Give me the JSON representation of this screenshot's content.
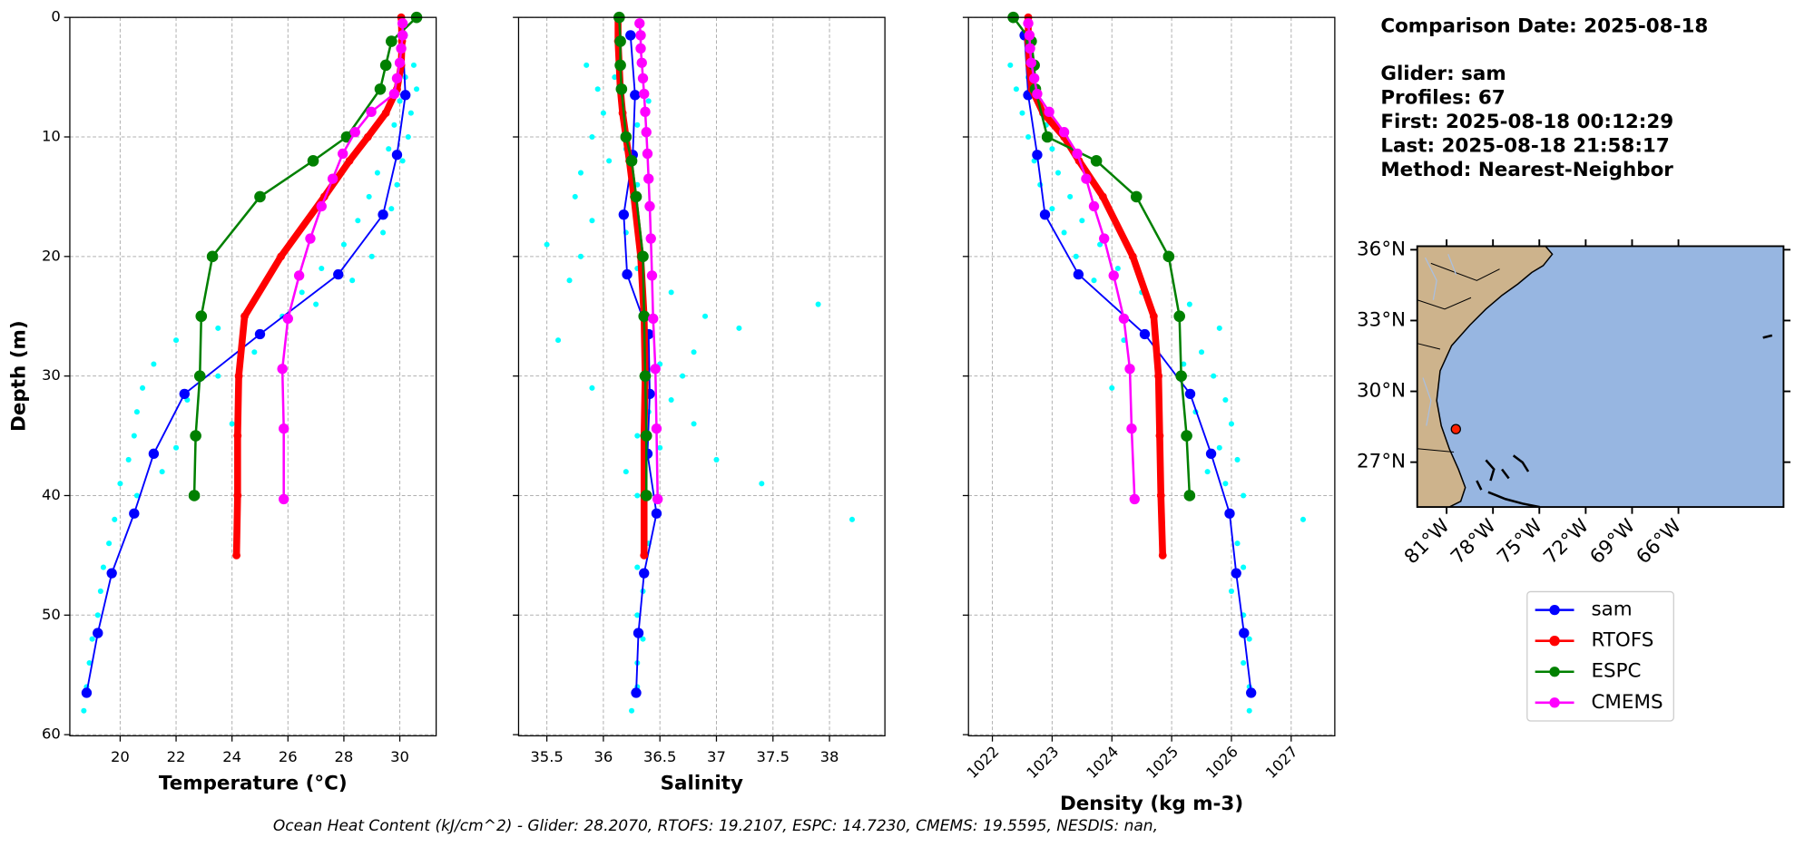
{
  "chart_data": [
    {
      "type": "line",
      "xlabel": "Temperature (°C)",
      "ylabel": "Depth (m)",
      "xlim": [
        18.2,
        31.3
      ],
      "xticks": [
        20,
        22,
        24,
        26,
        28,
        30
      ],
      "ylim": [
        0,
        60
      ],
      "yticks": [
        0,
        10,
        20,
        30,
        40,
        50,
        60
      ],
      "show_ytick_labels": true,
      "xtick_rotation": 0,
      "grid": true,
      "scatter": {
        "color": "#00ffff",
        "depth": [
          4,
          5,
          6,
          7,
          8,
          9,
          10,
          11,
          12,
          13,
          14,
          15,
          16,
          17,
          18,
          19,
          20,
          21,
          22,
          23,
          24,
          25,
          26,
          27,
          28,
          29,
          30,
          31,
          32,
          33,
          34,
          35,
          36,
          37,
          38,
          39,
          40,
          42,
          44,
          46,
          48,
          50,
          52,
          54,
          56,
          58
        ],
        "values": [
          30.5,
          30.2,
          30.6,
          30.0,
          30.4,
          29.8,
          30.3,
          29.6,
          30.1,
          29.2,
          29.9,
          28.9,
          29.7,
          28.5,
          29.4,
          28.0,
          29.0,
          27.2,
          28.3,
          26.5,
          27.0,
          25.8,
          23.5,
          22.0,
          24.8,
          21.2,
          23.5,
          20.8,
          22.4,
          20.6,
          24.0,
          20.5,
          22.0,
          20.3,
          21.5,
          20.0,
          20.6,
          19.8,
          19.6,
          19.4,
          19.3,
          19.2,
          19.0,
          18.9,
          18.8,
          18.7
        ]
      },
      "series": [
        {
          "name": "sam",
          "color": "#0000ff",
          "depth": [
            1.5,
            6.5,
            11.5,
            16.5,
            21.5,
            26.5,
            31.5,
            36.5,
            41.5,
            46.5,
            51.5,
            56.5
          ],
          "values": [
            30.1,
            30.2,
            29.9,
            29.4,
            27.8,
            25.0,
            22.3,
            21.2,
            20.5,
            19.7,
            19.2,
            18.8
          ]
        },
        {
          "name": "RTOFS",
          "color": "#ff0000",
          "depth": [
            0,
            2,
            4,
            6,
            8,
            10,
            12,
            15,
            20,
            25,
            30,
            35,
            40,
            45
          ],
          "values": [
            30.05,
            30.08,
            30.05,
            29.9,
            29.5,
            28.86,
            28.2,
            27.3,
            25.75,
            24.45,
            24.24,
            24.2,
            24.2,
            24.16
          ]
        },
        {
          "name": "ESPC",
          "color": "#008000",
          "depth": [
            0,
            2,
            4,
            6,
            10,
            12,
            15,
            20,
            25,
            30,
            35,
            40
          ],
          "values": [
            30.6,
            29.7,
            29.5,
            29.3,
            28.1,
            26.9,
            25.0,
            23.3,
            22.9,
            22.85,
            22.7,
            22.65
          ]
        },
        {
          "name": "CMEMS",
          "color": "#ff00ff",
          "depth": [
            0.5,
            1.5,
            2.6,
            3.8,
            5.1,
            6.4,
            7.9,
            9.6,
            11.4,
            13.5,
            15.8,
            18.5,
            21.6,
            25.2,
            29.4,
            34.4,
            40.3
          ],
          "values": [
            30.1,
            30.1,
            30.05,
            30.0,
            29.9,
            29.8,
            28.98,
            28.4,
            27.96,
            27.6,
            27.2,
            26.8,
            26.4,
            26.0,
            25.8,
            25.85,
            25.85
          ]
        }
      ]
    },
    {
      "type": "line",
      "xlabel": "Salinity",
      "xlim": [
        35.25,
        38.49
      ],
      "xticks": [
        35.5,
        36.0,
        36.5,
        37.0,
        37.5,
        38.0
      ],
      "ylim": [
        0,
        60
      ],
      "yticks": [
        0,
        10,
        20,
        30,
        40,
        50,
        60
      ],
      "show_ytick_labels": false,
      "xtick_rotation": 0,
      "grid": true,
      "scatter": {
        "color": "#00ffff",
        "depth": [
          4,
          5,
          6,
          7,
          8,
          9,
          10,
          11,
          12,
          13,
          14,
          15,
          16,
          17,
          18,
          19,
          20,
          21,
          22,
          23,
          24,
          25,
          26,
          27,
          28,
          29,
          30,
          31,
          32,
          33,
          34,
          35,
          36,
          37,
          38,
          39,
          40,
          42,
          44,
          46,
          48,
          50,
          52,
          54,
          56,
          58
        ],
        "values": [
          35.85,
          36.1,
          35.95,
          36.4,
          36.0,
          36.3,
          35.9,
          36.2,
          36.05,
          35.8,
          36.3,
          35.75,
          36.4,
          35.9,
          36.2,
          35.5,
          35.8,
          36.3,
          35.7,
          36.6,
          37.9,
          36.9,
          37.2,
          35.6,
          36.8,
          36.5,
          36.7,
          35.9,
          36.6,
          36.4,
          36.8,
          36.3,
          36.5,
          37.0,
          36.2,
          37.4,
          36.3,
          38.2,
          36.4,
          36.3,
          36.35,
          36.3,
          36.35,
          36.3,
          36.3,
          36.25
        ]
      },
      "series": [
        {
          "name": "sam",
          "color": "#0000ff",
          "depth": [
            1.5,
            6.5,
            11.5,
            16.5,
            21.5,
            26.5,
            31.5,
            36.5,
            41.5,
            46.5,
            51.5,
            56.5
          ],
          "values": [
            36.24,
            36.28,
            36.26,
            36.18,
            36.21,
            36.4,
            36.41,
            36.39,
            36.47,
            36.36,
            36.31,
            36.29
          ]
        },
        {
          "name": "RTOFS",
          "color": "#ff0000",
          "depth": [
            0,
            2,
            4,
            6,
            8,
            10,
            12,
            15,
            20,
            25,
            30,
            35,
            40,
            45
          ],
          "values": [
            36.13,
            36.13,
            36.14,
            36.15,
            36.17,
            36.2,
            36.23,
            36.27,
            36.33,
            36.36,
            36.37,
            36.36,
            36.36,
            36.36
          ]
        },
        {
          "name": "ESPC",
          "color": "#008000",
          "depth": [
            0,
            2,
            4,
            6,
            10,
            12,
            15,
            20,
            25,
            30,
            35,
            40
          ],
          "values": [
            36.14,
            36.15,
            36.15,
            36.16,
            36.2,
            36.25,
            36.29,
            36.35,
            36.36,
            36.37,
            36.38,
            36.38
          ]
        },
        {
          "name": "CMEMS",
          "color": "#ff00ff",
          "depth": [
            0.5,
            1.5,
            2.6,
            3.8,
            5.1,
            6.4,
            7.9,
            9.6,
            11.4,
            13.5,
            15.8,
            18.5,
            21.6,
            25.2,
            29.4,
            34.4,
            40.3
          ],
          "values": [
            36.32,
            36.33,
            36.33,
            36.34,
            36.35,
            36.36,
            36.37,
            36.38,
            36.39,
            36.4,
            36.41,
            36.42,
            36.43,
            36.44,
            36.46,
            36.47,
            36.48
          ]
        }
      ]
    },
    {
      "type": "line",
      "xlabel": "Density (kg m-3)",
      "xlim": [
        1021.6,
        1027.73
      ],
      "xticks": [
        1022,
        1023,
        1024,
        1025,
        1026,
        1027
      ],
      "ylim": [
        0,
        60
      ],
      "yticks": [
        0,
        10,
        20,
        30,
        40,
        50,
        60
      ],
      "show_ytick_labels": false,
      "xtick_rotation": 45,
      "grid": true,
      "scatter": {
        "color": "#00ffff",
        "depth": [
          4,
          5,
          6,
          7,
          8,
          9,
          10,
          11,
          12,
          13,
          14,
          15,
          16,
          17,
          18,
          19,
          20,
          21,
          22,
          23,
          24,
          25,
          26,
          27,
          28,
          29,
          30,
          31,
          32,
          33,
          34,
          35,
          36,
          37,
          38,
          39,
          40,
          42,
          44,
          46,
          48,
          50,
          52,
          54,
          56,
          58
        ],
        "values": [
          1022.3,
          1022.6,
          1022.4,
          1022.8,
          1022.5,
          1022.9,
          1022.6,
          1023.0,
          1022.7,
          1023.1,
          1022.8,
          1023.3,
          1023.0,
          1023.5,
          1023.2,
          1023.8,
          1023.4,
          1024.1,
          1023.7,
          1024.5,
          1025.3,
          1024.7,
          1025.8,
          1024.2,
          1025.5,
          1025.2,
          1025.7,
          1024.0,
          1025.9,
          1025.4,
          1026.0,
          1025.3,
          1025.8,
          1026.1,
          1025.6,
          1025.9,
          1026.2,
          1027.2,
          1026.1,
          1026.2,
          1026.0,
          1026.2,
          1026.3,
          1026.2,
          1026.3,
          1026.3
        ]
      },
      "series": [
        {
          "name": "sam",
          "color": "#0000ff",
          "depth": [
            1.5,
            6.5,
            11.5,
            16.5,
            21.5,
            26.5,
            31.5,
            36.5,
            41.5,
            46.5,
            51.5,
            56.5
          ],
          "values": [
            1022.54,
            1022.6,
            1022.75,
            1022.88,
            1023.44,
            1024.55,
            1025.31,
            1025.66,
            1025.97,
            1026.08,
            1026.21,
            1026.33
          ]
        },
        {
          "name": "RTOFS",
          "color": "#ff0000",
          "depth": [
            0,
            2,
            4,
            6,
            8,
            10,
            12,
            15,
            20,
            25,
            30,
            35,
            40,
            45
          ],
          "values": [
            1022.6,
            1022.6,
            1022.62,
            1022.66,
            1022.85,
            1023.2,
            1023.45,
            1023.85,
            1024.35,
            1024.7,
            1024.78,
            1024.8,
            1024.82,
            1024.85
          ]
        },
        {
          "name": "ESPC",
          "color": "#008000",
          "depth": [
            0,
            2,
            4,
            6,
            10,
            12,
            15,
            20,
            25,
            30,
            35,
            40
          ],
          "values": [
            1022.35,
            1022.65,
            1022.7,
            1022.72,
            1022.92,
            1023.74,
            1024.41,
            1024.95,
            1025.13,
            1025.16,
            1025.25,
            1025.3
          ]
        },
        {
          "name": "CMEMS",
          "color": "#ff00ff",
          "depth": [
            0.5,
            1.5,
            2.6,
            3.8,
            5.1,
            6.4,
            7.9,
            9.6,
            11.4,
            13.5,
            15.8,
            18.5,
            21.6,
            25.2,
            29.4,
            34.4,
            40.3
          ],
          "values": [
            1022.6,
            1022.62,
            1022.63,
            1022.65,
            1022.7,
            1022.75,
            1022.95,
            1023.2,
            1023.42,
            1023.57,
            1023.7,
            1023.87,
            1024.03,
            1024.2,
            1024.3,
            1024.33,
            1024.38
          ]
        }
      ]
    }
  ],
  "info": {
    "comparison": "Comparison Date: 2025-08-18",
    "lines": [
      "Glider: sam",
      "Profiles: 67",
      "First: 2025-08-18 00:12:29",
      "Last: 2025-08-18 21:58:17",
      "Method: Nearest-Neighbor"
    ]
  },
  "map": {
    "xlim": [
      -82.9,
      -59.2
    ],
    "ylim": [
      25.1,
      36.15
    ],
    "xticks": [
      {
        "value": -81,
        "label": "81°W"
      },
      {
        "value": -78,
        "label": "78°W"
      },
      {
        "value": -75,
        "label": "75°W"
      },
      {
        "value": -72,
        "label": "72°W"
      },
      {
        "value": -69,
        "label": "69°W"
      },
      {
        "value": -66,
        "label": "66°W"
      }
    ],
    "yticks": [
      {
        "value": 36,
        "label": "36°N"
      },
      {
        "value": 33,
        "label": "33°N"
      },
      {
        "value": 30,
        "label": "30°N"
      },
      {
        "value": 27,
        "label": "27°N"
      }
    ],
    "glider_position": {
      "lon": -80.4,
      "lat": 28.4,
      "color": "#ff2000"
    }
  },
  "footer": "Ocean Heat Content (kJ/cm^2) - Glider: 28.2070,  RTOFS: 19.2107,  ESPC: 14.7230,  CMEMS: 19.5595,  NESDIS: nan,"
}
